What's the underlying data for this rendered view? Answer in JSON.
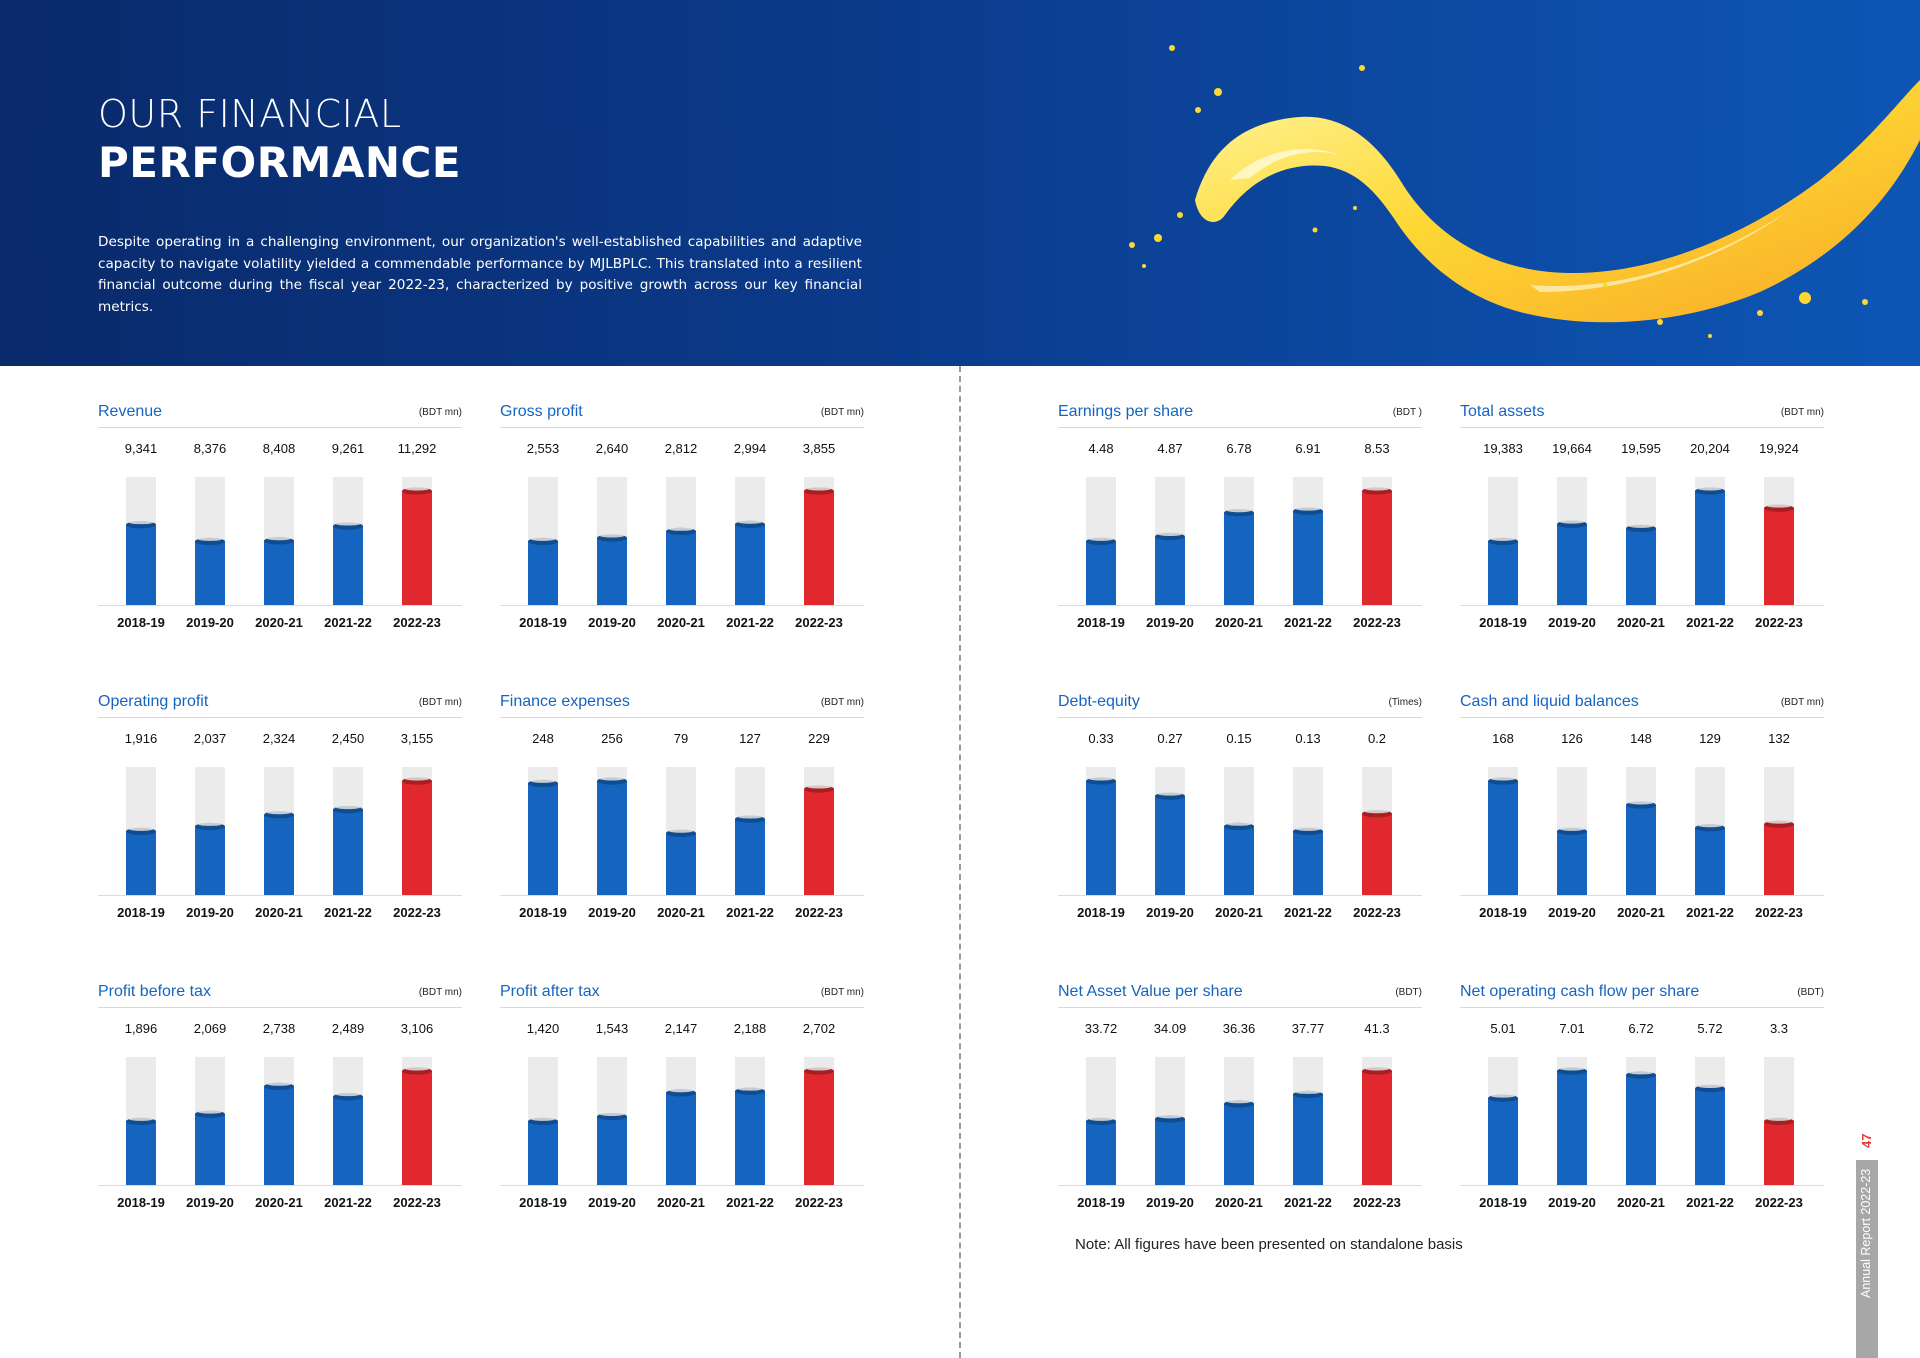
{
  "header": {
    "title_line1": "OUR FINANCIAL",
    "title_line2": "PERFORMANCE",
    "intro": "Despite operating in a challenging environment, our organization's well-established capabilities and adaptive capacity to navigate volatility yielded a commendable performance by MJLBPLC. This translated into a resilient financial outcome during the fiscal year 2022-23, characterized by positive growth across our key financial metrics."
  },
  "colors": {
    "bar_past": "#1565c0",
    "bar_current": "#e0282e",
    "bar_track": "#ebebeb",
    "title": "#1565c0"
  },
  "chart_data": [
    {
      "type": "bar",
      "title": "Revenue",
      "unit": "(BDT mn)",
      "categories": [
        "2018-19",
        "2019-20",
        "2020-21",
        "2021-22",
        "2022-23"
      ],
      "labels": [
        "9,341",
        "8,376",
        "8,408",
        "9,261",
        "11,292"
      ],
      "values": [
        9341,
        8376,
        8408,
        9261,
        11292
      ],
      "highlight_index": 4
    },
    {
      "type": "bar",
      "title": "Gross profit",
      "unit": "(BDT mn)",
      "categories": [
        "2018-19",
        "2019-20",
        "2020-21",
        "2021-22",
        "2022-23"
      ],
      "labels": [
        "2,553",
        "2,640",
        "2,812",
        "2,994",
        "3,855"
      ],
      "values": [
        2553,
        2640,
        2812,
        2994,
        3855
      ],
      "highlight_index": 4
    },
    {
      "type": "bar",
      "title": "Earnings per share",
      "unit": "(BDT )",
      "categories": [
        "2018-19",
        "2019-20",
        "2020-21",
        "2021-22",
        "2022-23"
      ],
      "labels": [
        "4.48",
        "4.87",
        "6.78",
        "6.91",
        "8.53"
      ],
      "values": [
        4.48,
        4.87,
        6.78,
        6.91,
        8.53
      ],
      "highlight_index": 4
    },
    {
      "type": "bar",
      "title": "Total assets",
      "unit": "(BDT mn)",
      "categories": [
        "2018-19",
        "2019-20",
        "2020-21",
        "2021-22",
        "2022-23"
      ],
      "labels": [
        "19,383",
        "19,664",
        "19,595",
        "20,204",
        "19,924"
      ],
      "values": [
        19383,
        19664,
        19595,
        20204,
        19924
      ],
      "highlight_index": 4
    },
    {
      "type": "bar",
      "title": "Operating profit",
      "unit": "(BDT mn)",
      "categories": [
        "2018-19",
        "2019-20",
        "2020-21",
        "2021-22",
        "2022-23"
      ],
      "labels": [
        "1,916",
        "2,037",
        "2,324",
        "2,450",
        "3,155"
      ],
      "values": [
        1916,
        2037,
        2324,
        2450,
        3155
      ],
      "highlight_index": 4
    },
    {
      "type": "bar",
      "title": "Finance expenses",
      "unit": "(BDT mn)",
      "categories": [
        "2018-19",
        "2019-20",
        "2020-21",
        "2021-22",
        "2022-23"
      ],
      "labels": [
        "248",
        "256",
        "79",
        "127",
        "229"
      ],
      "values": [
        248,
        256,
        79,
        127,
        229
      ],
      "highlight_index": 4
    },
    {
      "type": "bar",
      "title": "Debt-equity",
      "unit": "(Times)",
      "categories": [
        "2018-19",
        "2019-20",
        "2020-21",
        "2021-22",
        "2022-23"
      ],
      "labels": [
        "0.33",
        "0.27",
        "0.15",
        "0.13",
        "0.2"
      ],
      "values": [
        0.33,
        0.27,
        0.15,
        0.13,
        0.2
      ],
      "highlight_index": 4
    },
    {
      "type": "bar",
      "title": "Cash and liquid balances",
      "unit": "(BDT mn)",
      "categories": [
        "2018-19",
        "2019-20",
        "2020-21",
        "2021-22",
        "2022-23"
      ],
      "labels": [
        "168",
        "126",
        "148",
        "129",
        "132"
      ],
      "values": [
        168,
        126,
        148,
        129,
        132
      ],
      "highlight_index": 4
    },
    {
      "type": "bar",
      "title": "Profit before tax",
      "unit": "(BDT mn)",
      "categories": [
        "2018-19",
        "2019-20",
        "2020-21",
        "2021-22",
        "2022-23"
      ],
      "labels": [
        "1,896",
        "2,069",
        "2,738",
        "2,489",
        "3,106"
      ],
      "values": [
        1896,
        2069,
        2738,
        2489,
        3106
      ],
      "highlight_index": 4
    },
    {
      "type": "bar",
      "title": "Profit after tax",
      "unit": "(BDT mn)",
      "categories": [
        "2018-19",
        "2019-20",
        "2020-21",
        "2021-22",
        "2022-23"
      ],
      "labels": [
        "1,420",
        "1,543",
        "2,147",
        "2,188",
        "2,702"
      ],
      "values": [
        1420,
        1543,
        2147,
        2188,
        2702
      ],
      "highlight_index": 4
    },
    {
      "type": "bar",
      "title": "Net Asset Value per share",
      "unit": "(BDT)",
      "categories": [
        "2018-19",
        "2019-20",
        "2020-21",
        "2021-22",
        "2022-23"
      ],
      "labels": [
        "33.72",
        "34.09",
        "36.36",
        "37.77",
        "41.3"
      ],
      "values": [
        33.72,
        34.09,
        36.36,
        37.77,
        41.3
      ],
      "highlight_index": 4
    },
    {
      "type": "bar",
      "title": "Net operating cash flow per share",
      "unit": "(BDT)",
      "categories": [
        "2018-19",
        "2019-20",
        "2020-21",
        "2021-22",
        "2022-23"
      ],
      "labels": [
        "5.01",
        "7.01",
        "6.72",
        "5.72",
        "3.3"
      ],
      "values": [
        5.01,
        7.01,
        6.72,
        5.72,
        3.3
      ],
      "highlight_index": 4
    }
  ],
  "footer": {
    "note": "Note: All figures have been presented on standalone basis",
    "side_label": "Annual Report 2022-23",
    "page_number": "47"
  }
}
